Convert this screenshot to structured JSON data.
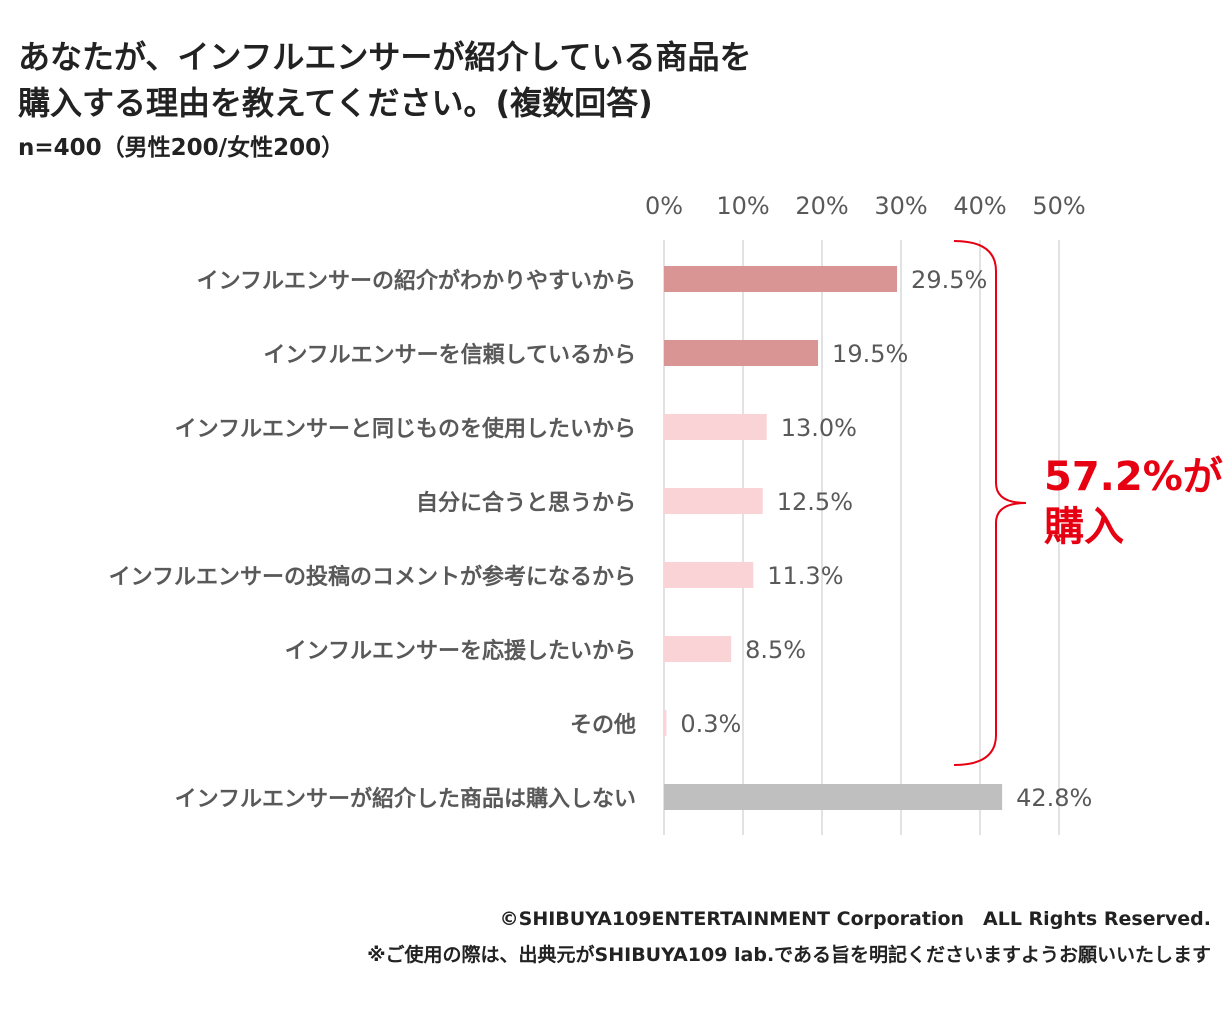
{
  "title_line1": "あなたが、インフルエンサーが紹介している商品を",
  "title_line2": "購入する理由を教えてください。(複数回答)",
  "subtitle": "n=400（男性200/女性200）",
  "chart_data": {
    "type": "bar",
    "orientation": "horizontal",
    "title": "あなたが、インフルエンサーが紹介している商品を購入する理由を教えてください。(複数回答)",
    "xlim": [
      0,
      50
    ],
    "xticks": [
      "0%",
      "10%",
      "20%",
      "30%",
      "40%",
      "50%"
    ],
    "grid": true,
    "categories": [
      "インフルエンサーの紹介がわかりやすいから",
      "インフルエンサーを信頼しているから",
      "インフルエンサーと同じものを使用したいから",
      "自分に合うと思うから",
      "インフルエンサーの投稿のコメントが参考になるから",
      "インフルエンサーを応援したいから",
      "その他",
      "インフルエンサーが紹介した商品は購入しない"
    ],
    "values": [
      29.5,
      19.5,
      13.0,
      12.5,
      11.3,
      8.5,
      0.3,
      42.8
    ],
    "labels": [
      "29.5%",
      "19.5%",
      "13.0%",
      "12.5%",
      "11.3%",
      "8.5%",
      "0.3%",
      "42.8%"
    ],
    "colors": [
      "#d99494",
      "#d99494",
      "#f9d3d6",
      "#f9d3d6",
      "#f9d3d6",
      "#f9d3d6",
      "#f9d3d6",
      "#bfbfbf"
    ],
    "annotation": {
      "line1": "57.2%が",
      "line2": "購入",
      "color": "#e60012",
      "span_first": 0,
      "span_last": 6
    }
  },
  "footer_line1": "©SHIBUYA109ENTERTAINMENT Corporation　ALL Rights Reserved.",
  "footer_line2": "※ご使用の際は、出典元がSHIBUYA109 lab.である旨を明記くださいますようお願いいたします"
}
